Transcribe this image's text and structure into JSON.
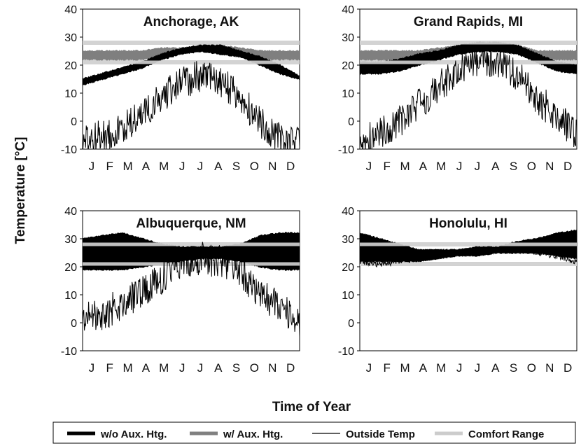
{
  "figure": {
    "ylabel": "Temperature [°C]",
    "xlabel": "Time of Year"
  },
  "legend": {
    "items": [
      {
        "label": "w/o Aux. Htg.",
        "color": "#000000",
        "width": "thick"
      },
      {
        "label": "w/ Aux. Htg.",
        "color": "#808080",
        "width": "thick"
      },
      {
        "label": "Outside Temp",
        "color": "#000000",
        "width": "thin"
      },
      {
        "label": "Comfort Range",
        "color": "#cccccc",
        "width": "thick"
      }
    ]
  },
  "chart_data": [
    {
      "type": "line",
      "title": "Anchorage, AK",
      "x": [
        "J",
        "F",
        "M",
        "A",
        "M",
        "J",
        "J",
        "A",
        "S",
        "O",
        "N",
        "D"
      ],
      "ylim": [
        -10,
        40
      ],
      "yticks": [
        -10,
        0,
        10,
        20,
        30,
        40
      ],
      "comfort_range": [
        21,
        28
      ],
      "series": [
        {
          "name": "w/o Aux. Htg.",
          "min": [
            13,
            15,
            17,
            19,
            22,
            24,
            25,
            24,
            23,
            20,
            17,
            15
          ],
          "max": [
            15,
            17,
            19,
            21,
            24,
            26,
            27,
            27,
            25,
            23,
            20,
            16
          ]
        },
        {
          "name": "w/ Aux. Htg.",
          "min": [
            22,
            22,
            22,
            22,
            23,
            24,
            25,
            24,
            23,
            22,
            22,
            22
          ],
          "max": [
            25,
            25,
            25,
            25,
            26,
            26,
            27,
            27,
            26,
            25,
            25,
            25
          ]
        },
        {
          "name": "Outside Temp",
          "values": [
            -8,
            -5,
            -3,
            2,
            8,
            14,
            16,
            14,
            8,
            0,
            -6,
            -8
          ]
        }
      ]
    },
    {
      "type": "line",
      "title": "Grand Rapids, MI",
      "x": [
        "J",
        "F",
        "M",
        "A",
        "M",
        "J",
        "J",
        "A",
        "S",
        "O",
        "N",
        "D"
      ],
      "ylim": [
        -10,
        40
      ],
      "yticks": [
        -10,
        0,
        10,
        20,
        30,
        40
      ],
      "comfort_range": [
        21,
        28
      ],
      "series": [
        {
          "name": "w/o Aux. Htg.",
          "min": [
            17,
            17,
            18,
            20,
            22,
            24,
            25,
            25,
            24,
            21,
            18,
            17
          ],
          "max": [
            21,
            21,
            22,
            24,
            25,
            27,
            28,
            28,
            27,
            24,
            21,
            20
          ]
        },
        {
          "name": "w/ Aux. Htg.",
          "min": [
            22,
            22,
            22,
            22,
            23,
            24,
            25,
            25,
            24,
            22,
            22,
            22
          ],
          "max": [
            25,
            25,
            25,
            25,
            26,
            27,
            28,
            28,
            27,
            25,
            25,
            25
          ]
        },
        {
          "name": "Outside Temp",
          "values": [
            -8,
            -4,
            0,
            6,
            12,
            18,
            22,
            21,
            16,
            8,
            2,
            -5
          ]
        }
      ]
    },
    {
      "type": "line",
      "title": "Albuquerque, NM",
      "x": [
        "J",
        "F",
        "M",
        "A",
        "M",
        "J",
        "J",
        "A",
        "S",
        "O",
        "N",
        "D"
      ],
      "ylim": [
        -10,
        40
      ],
      "yticks": [
        -10,
        0,
        10,
        20,
        30,
        40
      ],
      "comfort_range": [
        21,
        28
      ],
      "series": [
        {
          "name": "w/o Aux. Htg.",
          "min": [
            19,
            19,
            19,
            20,
            21,
            22,
            23,
            23,
            22,
            20,
            19,
            19
          ],
          "max": [
            30,
            31,
            32,
            30,
            28,
            27,
            27,
            27,
            28,
            31,
            32,
            32
          ]
        },
        {
          "name": "w/ Aux. Htg.",
          "min": [
            22,
            22,
            22,
            22,
            23,
            23,
            24,
            24,
            23,
            22,
            22,
            22
          ],
          "max": [
            27,
            27,
            27,
            27,
            27,
            27,
            27,
            27,
            27,
            27,
            27,
            27
          ]
        },
        {
          "name": "Outside Temp",
          "values": [
            1,
            3,
            7,
            11,
            16,
            22,
            23,
            22,
            18,
            11,
            5,
            0
          ]
        }
      ]
    },
    {
      "type": "line",
      "title": "Honolulu, HI",
      "x": [
        "J",
        "F",
        "M",
        "A",
        "M",
        "J",
        "J",
        "A",
        "S",
        "O",
        "N",
        "D"
      ],
      "ylim": [
        -10,
        40
      ],
      "yticks": [
        -10,
        0,
        10,
        20,
        30,
        40
      ],
      "comfort_range": [
        21,
        28
      ],
      "series": [
        {
          "name": "w/o Aux. Htg.",
          "min": [
            22,
            22,
            22,
            22,
            23,
            24,
            24,
            25,
            25,
            25,
            24,
            23
          ],
          "max": [
            32,
            30,
            28,
            26,
            26,
            26,
            27,
            27,
            29,
            30,
            32,
            33
          ]
        },
        {
          "name": "w/ Aux. Htg.",
          "min": [
            22,
            22,
            22,
            22,
            23,
            24,
            24,
            25,
            25,
            25,
            24,
            23
          ],
          "max": [
            27,
            27,
            27,
            26,
            26,
            26,
            27,
            27,
            27,
            27,
            27,
            27
          ]
        },
        {
          "name": "Outside Temp",
          "values": [
            22,
            21,
            22,
            23,
            24,
            25,
            25,
            26,
            26,
            25,
            24,
            22
          ]
        }
      ]
    }
  ]
}
